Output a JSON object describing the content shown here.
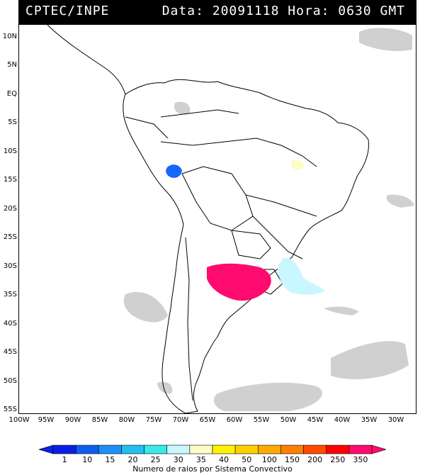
{
  "header": {
    "source": "CPTEC/INPE",
    "datetime": "Data: 20091118 Hora: 0630 GMT"
  },
  "map": {
    "lat_labels": [
      "10N",
      "5N",
      "EQ",
      "5S",
      "10S",
      "15S",
      "20S",
      "25S",
      "30S",
      "35S",
      "40S",
      "45S",
      "50S",
      "55S"
    ],
    "lon_labels": [
      "100W",
      "95W",
      "90W",
      "85W",
      "80W",
      "75W",
      "70W",
      "65W",
      "60W",
      "55W",
      "50W",
      "45W",
      "40W",
      "35W",
      "30W"
    ],
    "lightning_clusters": [
      {
        "name": "bolivia-peru",
        "value_color": "#1565ff"
      },
      {
        "name": "central-brazil",
        "value_color": "#fffbc6"
      },
      {
        "name": "uruguay-argentina",
        "value_color": "#ff0a6e"
      },
      {
        "name": "south-brazil-atlantic",
        "value_color": "#c8f7ff"
      }
    ]
  },
  "legend": {
    "labels": [
      "1",
      "10",
      "15",
      "20",
      "25",
      "30",
      "35",
      "40",
      "50",
      "100",
      "150",
      "200",
      "250",
      "350"
    ],
    "colors": [
      "#0a1fe6",
      "#0f5cf0",
      "#1e8ff5",
      "#22c0ee",
      "#3ae8e8",
      "#c8f7ff",
      "#fffbc6",
      "#fff200",
      "#ffd000",
      "#ffaa00",
      "#ff7f00",
      "#ff4a00",
      "#ff0000",
      "#ff0a6e"
    ],
    "caption": "Numero de raios por Sistema Convectivo"
  }
}
